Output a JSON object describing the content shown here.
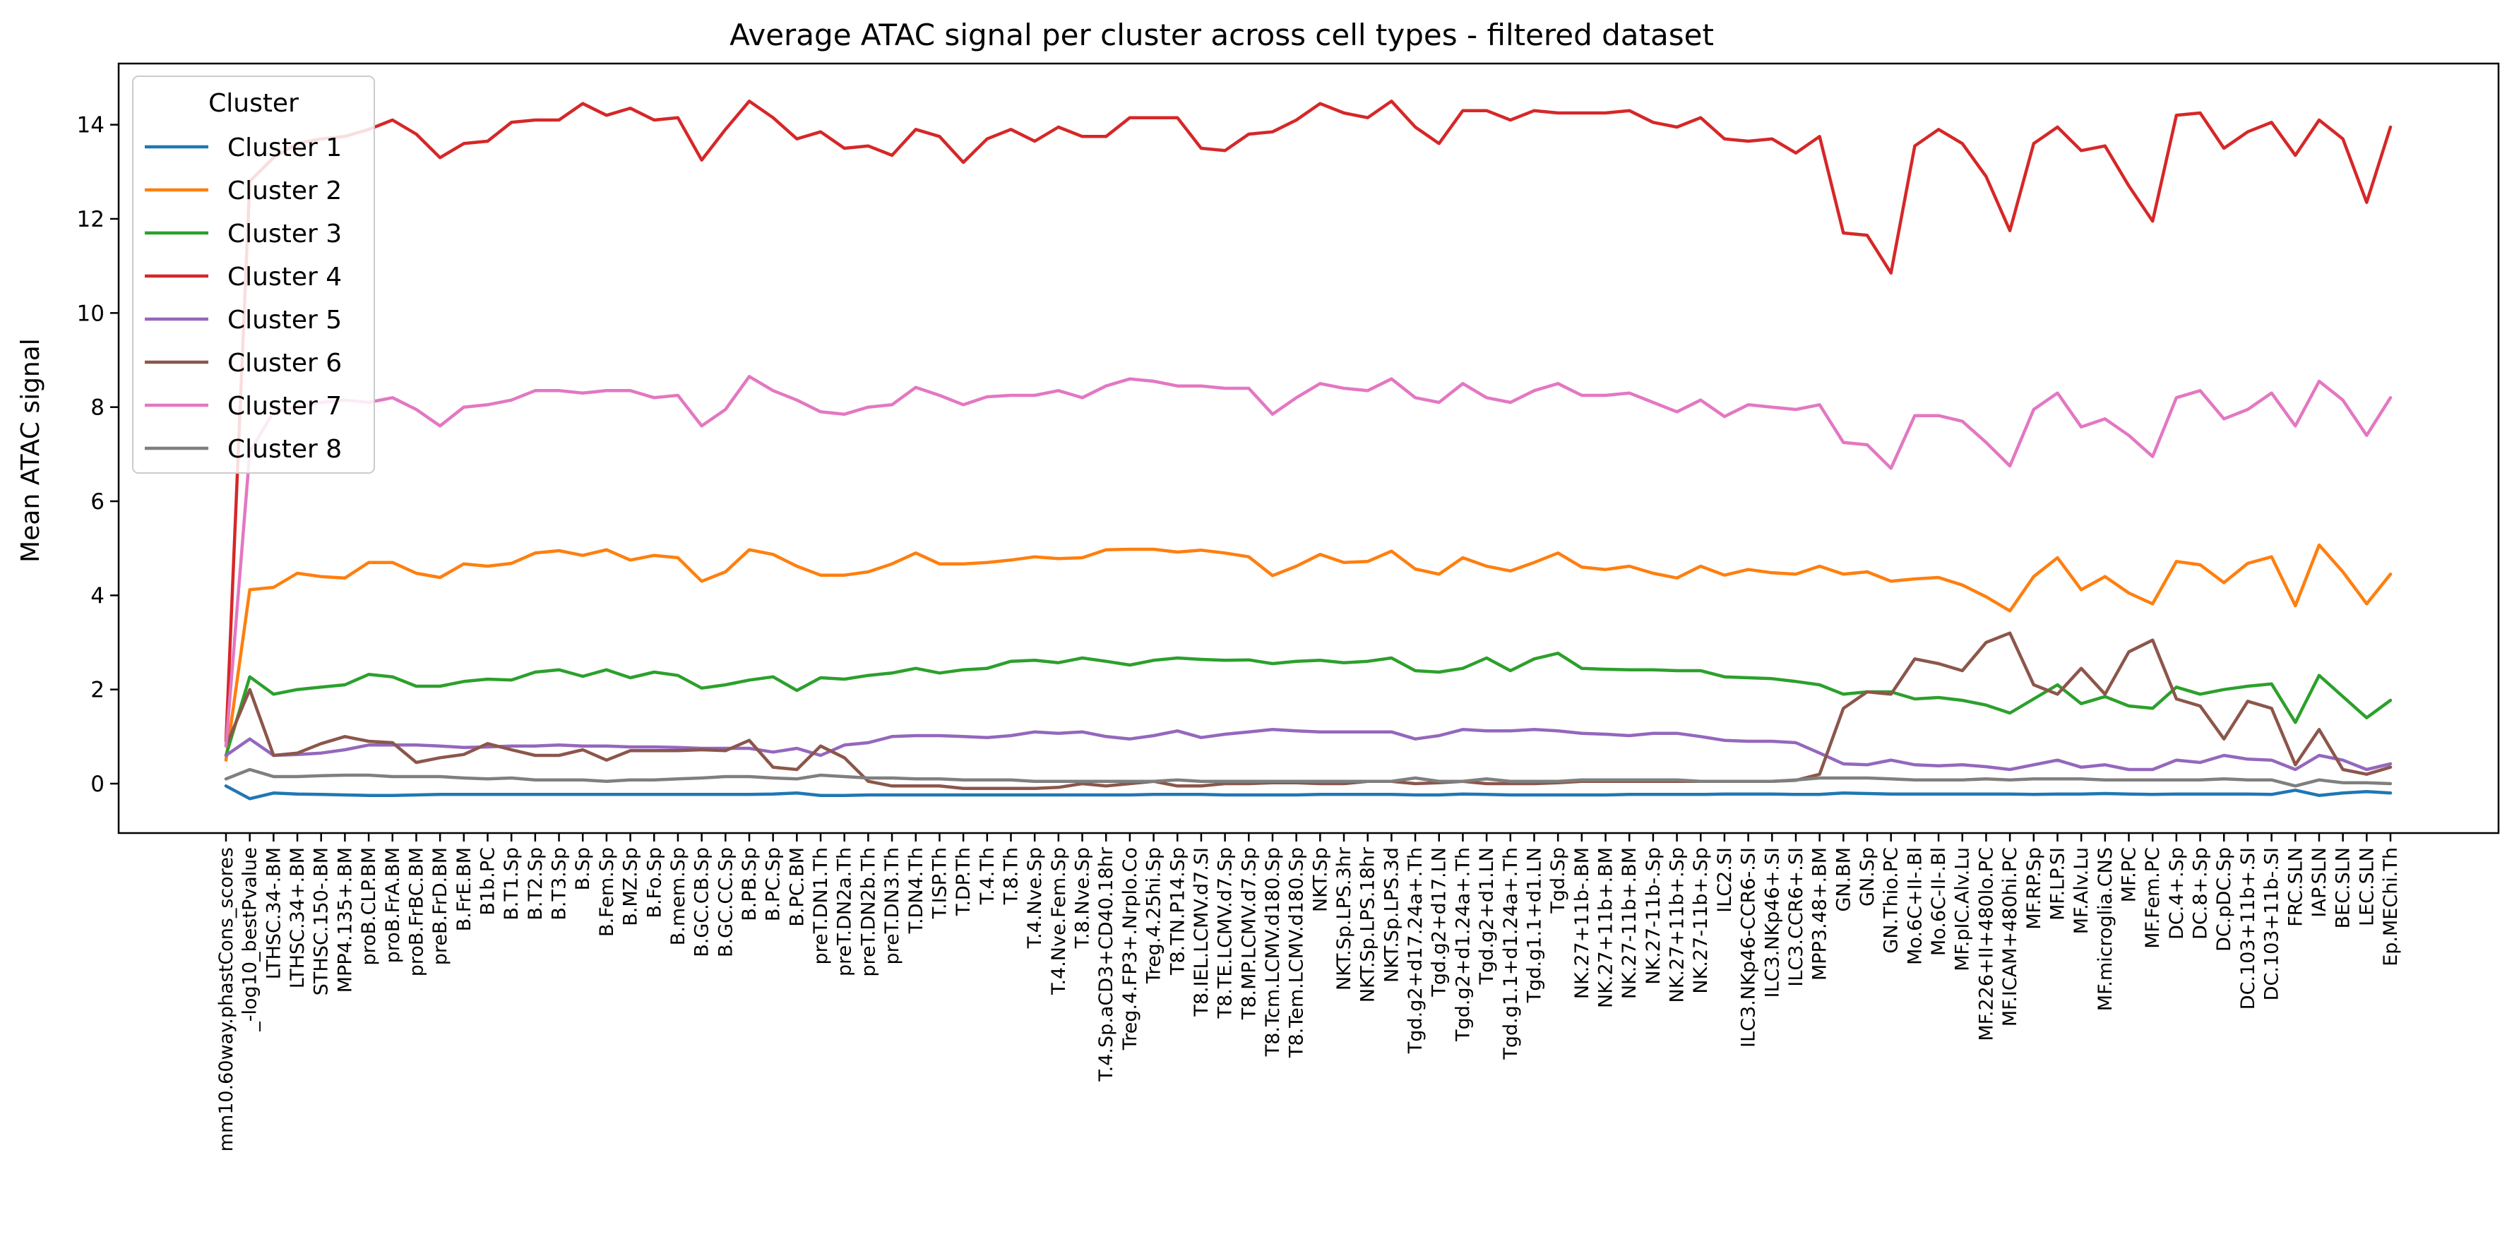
{
  "chart_data": {
    "type": "line",
    "title": "Average ATAC signal per cluster across cell types - filtered dataset",
    "xlabel": "",
    "ylabel": "Mean ATAC signal",
    "ylim": [
      -1.05,
      15.3
    ],
    "yticks": [
      0,
      2,
      4,
      6,
      8,
      10,
      12,
      14
    ],
    "grid": false,
    "legend": {
      "title": "Cluster",
      "position": "top-left"
    },
    "categories": [
      "mm10.60way.phastCons_scores",
      "_-log10_bestPvalue",
      "LTHSC.34-.BM",
      "LTHSC.34+.BM",
      "STHSC.150-.BM",
      "MPP4.135+.BM",
      "proB.CLP.BM",
      "proB.FrA.BM",
      "proB.FrBC.BM",
      "preB.FrD.BM",
      "B.FrE.BM",
      "B1b.PC",
      "B.T1.Sp",
      "B.T2.Sp",
      "B.T3.Sp",
      "B.Sp",
      "B.Fem.Sp",
      "B.MZ.Sp",
      "B.Fo.Sp",
      "B.mem.Sp",
      "B.GC.CB.Sp",
      "B.GC.CC.Sp",
      "B.PB.Sp",
      "B.PC.Sp",
      "B.PC.BM",
      "preT.DN1.Th",
      "preT.DN2a.Th",
      "preT.DN2b.Th",
      "preT.DN3.Th",
      "T.DN4.Th",
      "T.ISP.Th",
      "T.DP.Th",
      "T.4.Th",
      "T.8.Th",
      "T.4.Nve.Sp",
      "T.4.Nve.Fem.Sp",
      "T.8.Nve.Sp",
      "T.4.Sp.aCD3+CD40.18hr",
      "Treg.4.FP3+.Nrplo.Co",
      "Treg.4.25hi.Sp",
      "T8.TN.P14.Sp",
      "T8.IEL.LCMV.d7.SI",
      "T8.TE.LCMV.d7.Sp",
      "T8.MP.LCMV.d7.Sp",
      "T8.Tcm.LCMV.d180.Sp",
      "T8.Tem.LCMV.d180.Sp",
      "NKT.Sp",
      "NKT.Sp.LPS.3hr",
      "NKT.Sp.LPS.18hr",
      "NKT.Sp.LPS.3d",
      "Tgd.g2+d17.24a+.Th",
      "Tgd.g2+d17.LN",
      "Tgd.g2+d1.24a+.Th",
      "Tgd.g2+d1.LN",
      "Tgd.g1.1+d1.24a+.Th",
      "Tgd.g1.1+d1.LN",
      "Tgd.Sp",
      "NK.27+11b-.BM",
      "NK.27+11b+.BM",
      "NK.27-11b+.BM",
      "NK.27-11b-.Sp",
      "NK.27+11b+.Sp",
      "NK.27-11b+.Sp",
      "ILC2.SI",
      "ILC3.NKp46-CCR6-.SI",
      "ILC3.NKp46+.SI",
      "ILC3.CCR6+.SI",
      "MPP3.48+.BM",
      "GN.BM",
      "GN.Sp",
      "GN.Thio.PC",
      "Mo.6C+II-.Bl",
      "Mo.6C-II-.Bl",
      "MF.pIC.Alv.Lu",
      "MF.226+II+480lo.PC",
      "MF.ICAM+480hi.PC",
      "MF.RP.Sp",
      "MF.LP.SI",
      "MF.Alv.Lu",
      "MF.microglia.CNS",
      "MF.PC",
      "MF.Fem.PC",
      "DC.4+.Sp",
      "DC.8+.Sp",
      "DC.pDC.Sp",
      "DC.103+11b+.SI",
      "DC.103+11b-.SI",
      "FRC.SLN",
      "IAP.SLN",
      "BEC.SLN",
      "LEC.SLN",
      "Ep.MEChi.Th"
    ],
    "series": [
      {
        "name": "Cluster 1",
        "color": "#1f77b4",
        "values": [
          -0.05,
          -0.32,
          -0.2,
          -0.22,
          -0.23,
          -0.24,
          -0.25,
          -0.25,
          -0.24,
          -0.23,
          -0.23,
          -0.23,
          -0.23,
          -0.23,
          -0.23,
          -0.23,
          -0.23,
          -0.23,
          -0.23,
          -0.23,
          -0.23,
          -0.23,
          -0.23,
          -0.22,
          -0.2,
          -0.25,
          -0.25,
          -0.24,
          -0.24,
          -0.24,
          -0.24,
          -0.24,
          -0.24,
          -0.24,
          -0.24,
          -0.24,
          -0.24,
          -0.24,
          -0.24,
          -0.23,
          -0.23,
          -0.23,
          -0.24,
          -0.24,
          -0.24,
          -0.24,
          -0.23,
          -0.23,
          -0.23,
          -0.23,
          -0.24,
          -0.24,
          -0.22,
          -0.23,
          -0.24,
          -0.24,
          -0.24,
          -0.24,
          -0.24,
          -0.23,
          -0.23,
          -0.23,
          -0.23,
          -0.22,
          -0.22,
          -0.22,
          -0.23,
          -0.23,
          -0.2,
          -0.21,
          -0.22,
          -0.22,
          -0.22,
          -0.22,
          -0.22,
          -0.22,
          -0.23,
          -0.22,
          -0.22,
          -0.21,
          -0.22,
          -0.23,
          -0.22,
          -0.22,
          -0.22,
          -0.22,
          -0.23,
          -0.14,
          -0.25,
          -0.2,
          -0.17,
          -0.2
        ]
      },
      {
        "name": "Cluster 2",
        "color": "#ff7f0e",
        "values": [
          0.5,
          4.12,
          4.17,
          4.47,
          4.4,
          4.37,
          4.7,
          4.7,
          4.47,
          4.38,
          4.67,
          4.62,
          4.68,
          4.9,
          4.95,
          4.85,
          4.97,
          4.75,
          4.85,
          4.8,
          4.3,
          4.5,
          4.97,
          4.87,
          4.62,
          4.43,
          4.43,
          4.5,
          4.67,
          4.9,
          4.67,
          4.67,
          4.7,
          4.75,
          4.82,
          4.78,
          4.8,
          4.97,
          4.98,
          4.98,
          4.92,
          4.96,
          4.9,
          4.82,
          4.42,
          4.62,
          4.87,
          4.7,
          4.72,
          4.94,
          4.56,
          4.45,
          4.8,
          4.62,
          4.52,
          4.7,
          4.9,
          4.6,
          4.55,
          4.62,
          4.47,
          4.37,
          4.62,
          4.43,
          4.55,
          4.48,
          4.45,
          4.62,
          4.45,
          4.5,
          4.3,
          4.35,
          4.38,
          4.22,
          3.97,
          3.67,
          4.4,
          4.8,
          4.12,
          4.4,
          4.05,
          3.82,
          4.72,
          4.65,
          4.27,
          4.68,
          4.82,
          3.78,
          5.07,
          4.5,
          3.82,
          4.45
        ]
      },
      {
        "name": "Cluster 3",
        "color": "#2ca02c",
        "values": [
          0.6,
          2.27,
          1.9,
          2.0,
          2.05,
          2.1,
          2.32,
          2.27,
          2.07,
          2.07,
          2.17,
          2.22,
          2.2,
          2.37,
          2.42,
          2.28,
          2.42,
          2.25,
          2.37,
          2.3,
          2.03,
          2.1,
          2.2,
          2.27,
          1.98,
          2.25,
          2.22,
          2.3,
          2.35,
          2.45,
          2.35,
          2.42,
          2.45,
          2.6,
          2.62,
          2.57,
          2.67,
          2.6,
          2.52,
          2.62,
          2.67,
          2.64,
          2.62,
          2.63,
          2.55,
          2.6,
          2.62,
          2.57,
          2.6,
          2.67,
          2.4,
          2.37,
          2.45,
          2.67,
          2.4,
          2.65,
          2.77,
          2.45,
          2.43,
          2.42,
          2.42,
          2.4,
          2.4,
          2.27,
          2.25,
          2.23,
          2.17,
          2.1,
          1.9,
          1.95,
          1.95,
          1.8,
          1.83,
          1.77,
          1.67,
          1.5,
          1.8,
          2.1,
          1.7,
          1.85,
          1.65,
          1.6,
          2.05,
          1.9,
          2.0,
          2.07,
          2.12,
          1.3,
          2.3,
          1.85,
          1.4,
          1.77
        ]
      },
      {
        "name": "Cluster 4",
        "color": "#d62728",
        "values": [
          0.9,
          12.8,
          13.3,
          13.6,
          13.7,
          13.75,
          13.9,
          14.1,
          13.8,
          13.3,
          13.6,
          13.65,
          14.05,
          14.1,
          14.1,
          14.45,
          14.2,
          14.35,
          14.1,
          14.15,
          13.25,
          13.9,
          14.5,
          14.15,
          13.7,
          13.85,
          13.5,
          13.55,
          13.35,
          13.9,
          13.75,
          13.2,
          13.7,
          13.9,
          13.65,
          13.95,
          13.75,
          13.75,
          14.15,
          14.15,
          14.15,
          13.5,
          13.45,
          13.8,
          13.85,
          14.1,
          14.45,
          14.25,
          14.15,
          14.5,
          13.95,
          13.6,
          14.3,
          14.3,
          14.1,
          14.3,
          14.25,
          14.25,
          14.25,
          14.3,
          14.05,
          13.95,
          14.15,
          13.7,
          13.65,
          13.7,
          13.4,
          13.75,
          11.7,
          11.65,
          10.85,
          13.55,
          13.9,
          13.6,
          12.9,
          11.75,
          13.6,
          13.95,
          13.45,
          13.55,
          12.7,
          11.95,
          14.2,
          14.25,
          13.5,
          13.85,
          14.05,
          13.35,
          14.1,
          13.7,
          12.35,
          13.95
        ]
      },
      {
        "name": "Cluster 5",
        "color": "#9467bd",
        "values": [
          0.6,
          0.95,
          0.6,
          0.62,
          0.65,
          0.72,
          0.82,
          0.82,
          0.82,
          0.8,
          0.77,
          0.78,
          0.8,
          0.8,
          0.82,
          0.8,
          0.8,
          0.78,
          0.78,
          0.77,
          0.75,
          0.75,
          0.75,
          0.67,
          0.75,
          0.6,
          0.82,
          0.87,
          1.0,
          1.02,
          1.02,
          1.0,
          0.98,
          1.02,
          1.1,
          1.07,
          1.1,
          1.0,
          0.95,
          1.02,
          1.12,
          0.98,
          1.05,
          1.1,
          1.15,
          1.12,
          1.1,
          1.1,
          1.1,
          1.1,
          0.95,
          1.02,
          1.15,
          1.12,
          1.12,
          1.15,
          1.12,
          1.07,
          1.05,
          1.02,
          1.07,
          1.07,
          1.0,
          0.92,
          0.9,
          0.9,
          0.87,
          0.65,
          0.42,
          0.4,
          0.5,
          0.4,
          0.38,
          0.4,
          0.36,
          0.3,
          0.4,
          0.5,
          0.35,
          0.4,
          0.3,
          0.3,
          0.5,
          0.45,
          0.6,
          0.52,
          0.5,
          0.3,
          0.6,
          0.5,
          0.3,
          0.42
        ]
      },
      {
        "name": "Cluster 6",
        "color": "#8c564b",
        "values": [
          0.8,
          2.0,
          0.6,
          0.65,
          0.85,
          1.0,
          0.9,
          0.87,
          0.45,
          0.55,
          0.62,
          0.85,
          0.72,
          0.6,
          0.6,
          0.72,
          0.5,
          0.7,
          0.7,
          0.7,
          0.72,
          0.7,
          0.92,
          0.35,
          0.3,
          0.8,
          0.55,
          0.05,
          -0.05,
          -0.05,
          -0.05,
          -0.1,
          -0.1,
          -0.1,
          -0.1,
          -0.08,
          0.0,
          -0.05,
          0.0,
          0.05,
          -0.05,
          -0.05,
          0.0,
          0.0,
          0.02,
          0.02,
          0.0,
          0.0,
          0.05,
          0.05,
          0.0,
          0.02,
          0.05,
          0.0,
          0.0,
          0.0,
          0.02,
          0.05,
          0.05,
          0.05,
          0.05,
          0.05,
          0.05,
          0.05,
          0.05,
          0.05,
          0.07,
          0.2,
          1.6,
          1.95,
          1.9,
          2.65,
          2.55,
          2.4,
          3.0,
          3.2,
          2.1,
          1.9,
          2.45,
          1.9,
          2.8,
          3.05,
          1.8,
          1.65,
          0.95,
          1.75,
          1.6,
          0.4,
          1.15,
          0.3,
          0.2,
          0.35
        ]
      },
      {
        "name": "Cluster 7",
        "color": "#e377c2",
        "values": [
          0.8,
          7.05,
          7.9,
          8.0,
          8.1,
          8.15,
          8.1,
          8.2,
          7.95,
          7.6,
          8.0,
          8.05,
          8.15,
          8.35,
          8.35,
          8.3,
          8.35,
          8.35,
          8.2,
          8.25,
          7.6,
          7.95,
          8.65,
          8.35,
          8.15,
          7.9,
          7.85,
          8.0,
          8.05,
          8.42,
          8.25,
          8.05,
          8.22,
          8.25,
          8.25,
          8.35,
          8.2,
          8.45,
          8.6,
          8.55,
          8.45,
          8.45,
          8.4,
          8.4,
          7.85,
          8.2,
          8.5,
          8.4,
          8.35,
          8.6,
          8.2,
          8.1,
          8.5,
          8.2,
          8.1,
          8.35,
          8.5,
          8.25,
          8.25,
          8.3,
          8.1,
          7.9,
          8.15,
          7.8,
          8.05,
          8.0,
          7.95,
          8.05,
          7.25,
          7.2,
          6.7,
          7.82,
          7.82,
          7.7,
          7.25,
          6.75,
          7.95,
          8.3,
          7.58,
          7.75,
          7.4,
          6.95,
          8.2,
          8.35,
          7.75,
          7.95,
          8.3,
          7.6,
          8.55,
          8.15,
          7.4,
          8.2
        ]
      },
      {
        "name": "Cluster 8",
        "color": "#7f7f7f",
        "values": [
          0.1,
          0.3,
          0.15,
          0.15,
          0.17,
          0.18,
          0.18,
          0.15,
          0.15,
          0.15,
          0.12,
          0.1,
          0.12,
          0.08,
          0.08,
          0.08,
          0.05,
          0.08,
          0.08,
          0.1,
          0.12,
          0.15,
          0.15,
          0.12,
          0.1,
          0.18,
          0.15,
          0.12,
          0.12,
          0.1,
          0.1,
          0.08,
          0.08,
          0.08,
          0.05,
          0.05,
          0.05,
          0.05,
          0.05,
          0.05,
          0.08,
          0.05,
          0.05,
          0.05,
          0.05,
          0.05,
          0.05,
          0.05,
          0.05,
          0.05,
          0.12,
          0.05,
          0.05,
          0.1,
          0.05,
          0.05,
          0.05,
          0.08,
          0.08,
          0.08,
          0.08,
          0.08,
          0.05,
          0.05,
          0.05,
          0.05,
          0.08,
          0.12,
          0.12,
          0.12,
          0.1,
          0.08,
          0.08,
          0.08,
          0.1,
          0.08,
          0.1,
          0.1,
          0.1,
          0.08,
          0.08,
          0.08,
          0.08,
          0.08,
          0.1,
          0.08,
          0.08,
          -0.05,
          0.08,
          0.02,
          0.02,
          0.0
        ]
      }
    ]
  }
}
